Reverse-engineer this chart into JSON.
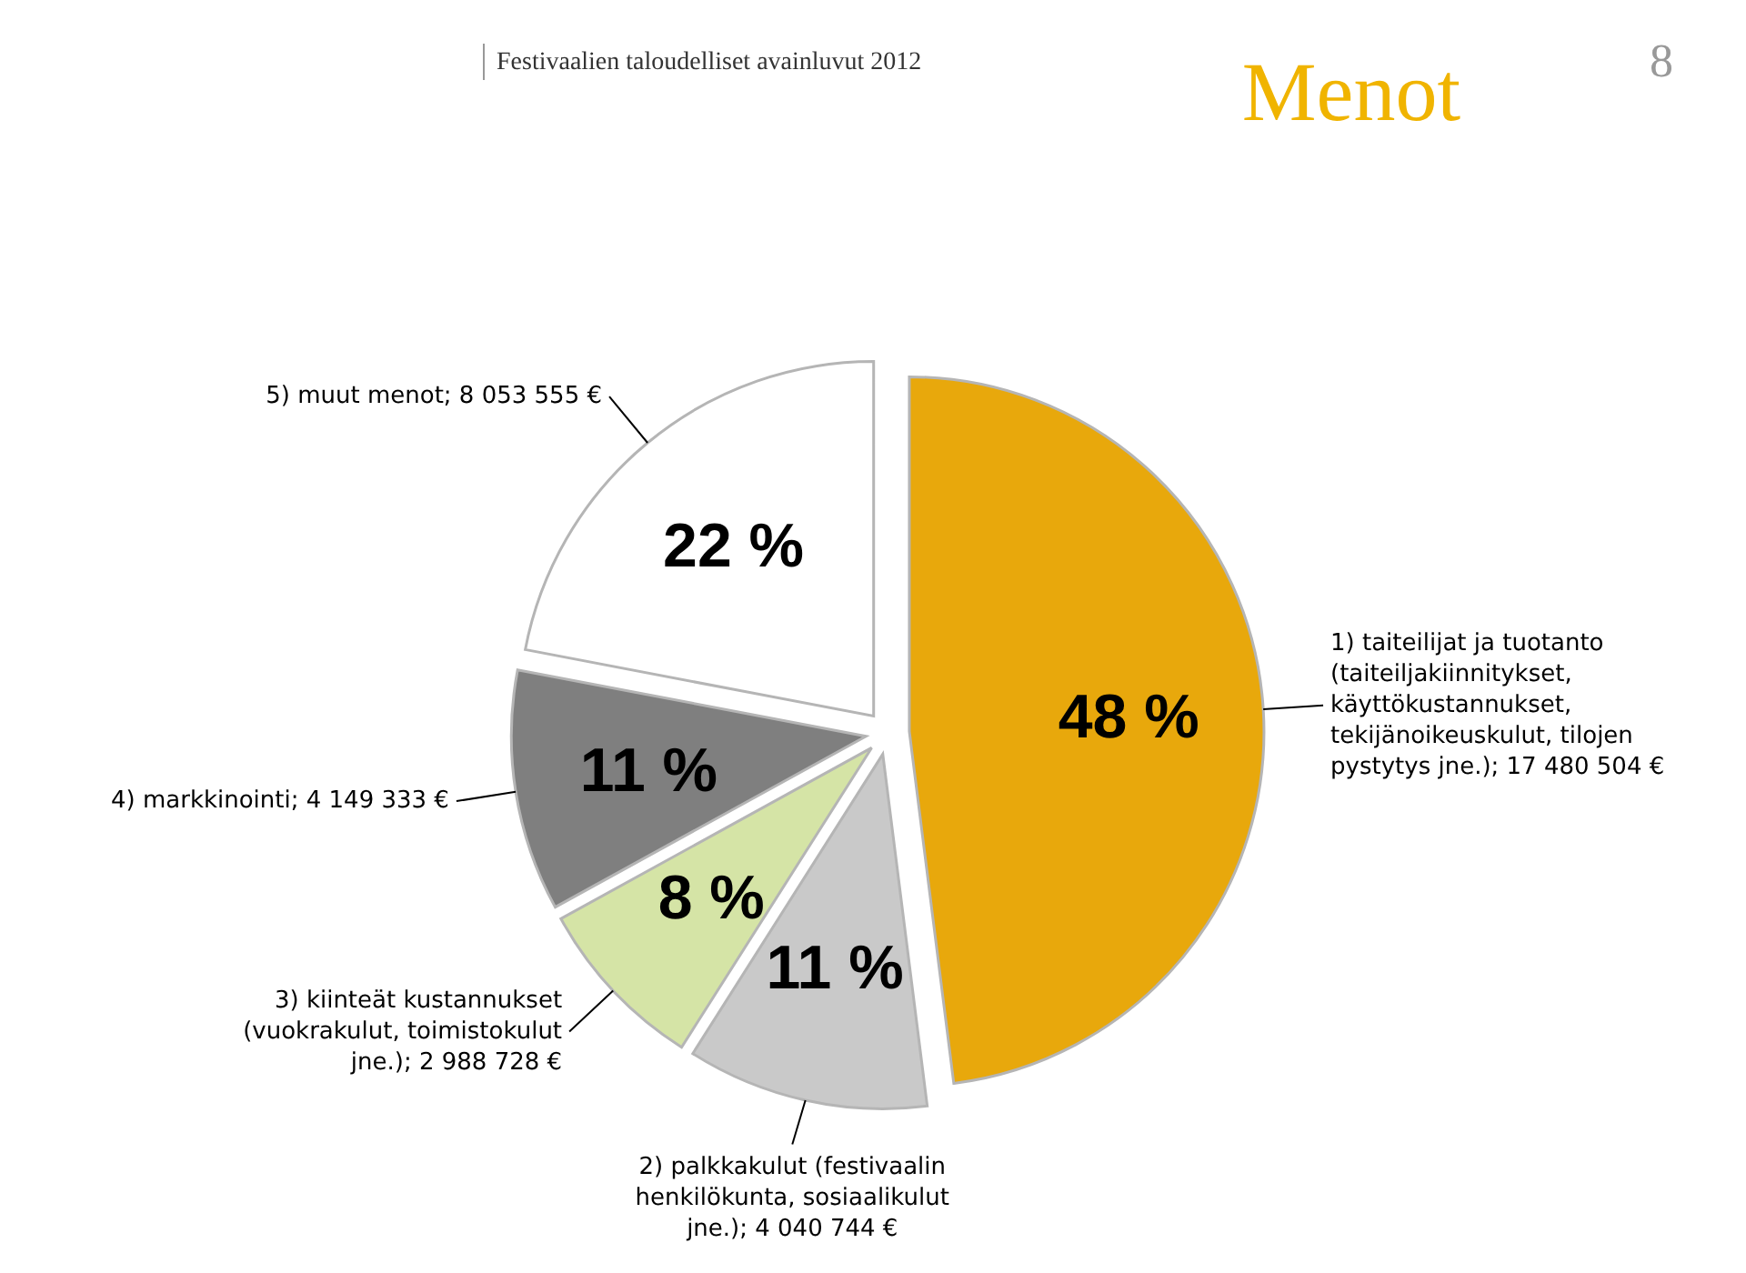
{
  "chart_data": {
    "type": "pie",
    "title": "Menot",
    "subtitle": "Festivaalien taloudelliset avainluvut 2012",
    "annotations": [
      "8"
    ],
    "categories": [
      "1) taiteilijat ja tuotanto (taiteiljakiinnitykset, käyttökustannukset, tekijänoikeuskulut, tilojen pystytys jne.); 17 480 504 €",
      "2) palkkakulut (festivaalin henkilökunta, sosiaalikulut jne.); 4 040 744 €",
      "3) kiinteät kustannukset (vuokrakulut, toimistokulut jne.); 2 988 728 €",
      "4) markkinointi; 4 149 333 €",
      "5) muut menot; 8 053 555 €"
    ],
    "values": [
      48,
      11,
      8,
      11,
      22
    ],
    "value_labels": [
      "48 %",
      "11 %",
      "8 %",
      "11 %",
      "22 %"
    ],
    "colors": [
      "#e8a80c",
      "#c9c9c9",
      "#d5e4a6",
      "#7f7f7f",
      "#ffffff"
    ]
  }
}
